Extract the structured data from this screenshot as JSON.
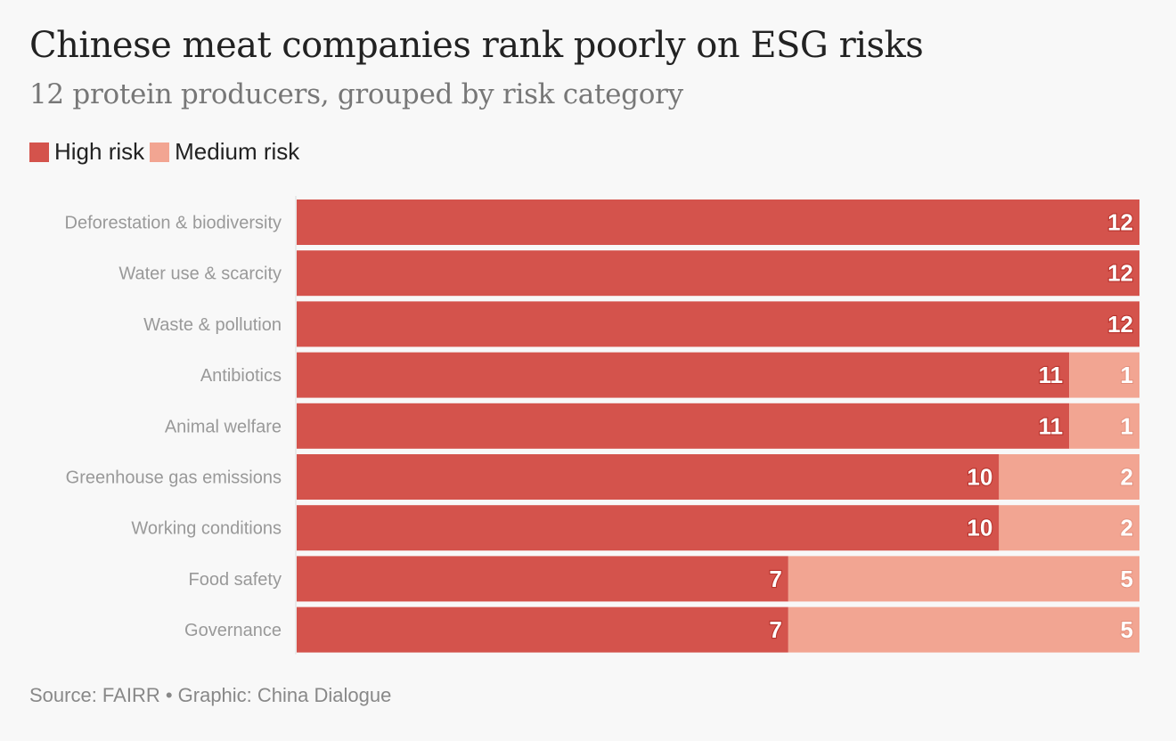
{
  "header": {
    "title": "Chinese meat companies rank poorly on ESG risks",
    "subtitle": "12 protein producers, grouped by risk category"
  },
  "legend": {
    "high_label": "High risk",
    "medium_label": "Medium risk"
  },
  "footer": {
    "source": "Source: FAIRR • Graphic: China Dialogue"
  },
  "colors": {
    "high": "#d4534c",
    "medium": "#f2a592"
  },
  "chart_data": {
    "type": "bar",
    "orientation": "horizontal",
    "stacked": true,
    "title": "Chinese meat companies rank poorly on ESG risks",
    "subtitle": "12 protein producers, grouped by risk category",
    "categories": [
      "Deforestation & biodiversity",
      "Water use & scarcity",
      "Waste & pollution",
      "Antibiotics",
      "Animal welfare",
      "Greenhouse gas emissions",
      "Working conditions",
      "Food safety",
      "Governance"
    ],
    "series": [
      {
        "name": "High risk",
        "values": [
          12,
          12,
          12,
          11,
          11,
          10,
          10,
          7,
          7
        ]
      },
      {
        "name": "Medium risk",
        "values": [
          0,
          0,
          0,
          1,
          1,
          2,
          2,
          5,
          5
        ]
      }
    ],
    "xlim": [
      0,
      12
    ],
    "xlabel": "",
    "ylabel": "",
    "grid": false,
    "legend_position": "top-left"
  }
}
